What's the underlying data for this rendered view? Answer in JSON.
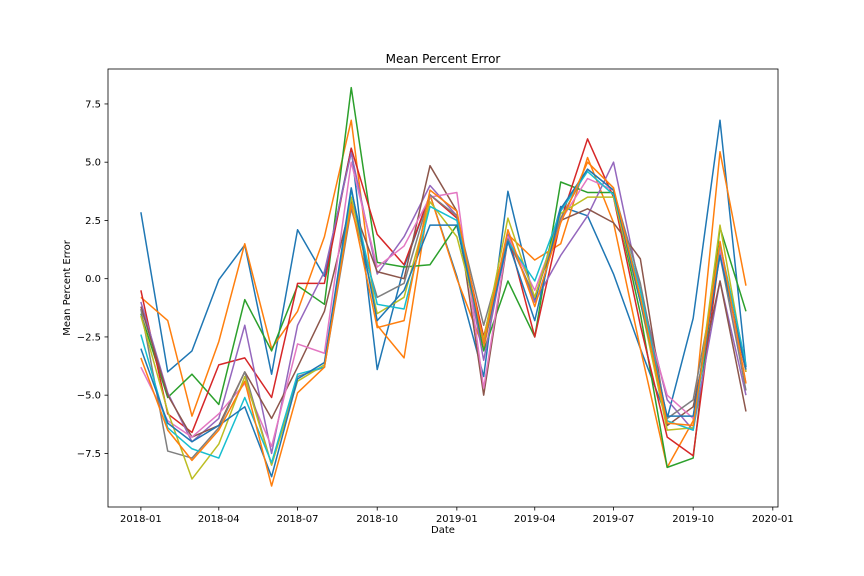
{
  "chart_data": {
    "type": "line",
    "title": "Mean Percent Error",
    "xlabel": "Date",
    "ylabel": "Mean Percent Error",
    "x": [
      "2018-01",
      "2018-02",
      "2018-03",
      "2018-04",
      "2018-05",
      "2018-06",
      "2018-07",
      "2018-08",
      "2018-09",
      "2018-10",
      "2018-11",
      "2018-12",
      "2019-01",
      "2019-02",
      "2019-03",
      "2019-04",
      "2019-05",
      "2019-06",
      "2019-07",
      "2019-08",
      "2019-09",
      "2019-10",
      "2019-11",
      "2019-12"
    ],
    "x_ticks": [
      "2018-01",
      "2018-04",
      "2018-07",
      "2018-10",
      "2019-01",
      "2019-04",
      "2019-07",
      "2019-10",
      "2020-01"
    ],
    "xlim": [
      "2017-11-24",
      "2020-01-07"
    ],
    "ylim": [
      -9.8,
      9.0
    ],
    "y_ticks": [
      -7.5,
      -5.0,
      -2.5,
      0.0,
      2.5,
      5.0,
      7.5
    ],
    "y_tick_labels": [
      "−7.5",
      "−5.0",
      "−2.5",
      "0.0",
      "2.5",
      "5.0",
      "7.5"
    ],
    "grid": false,
    "legend": "none",
    "series": [
      {
        "color": "#1f77b4",
        "values": [
          2.85,
          -4.0,
          -3.1,
          -0.05,
          1.45,
          -4.1,
          2.1,
          0.1,
          5.6,
          -3.9,
          0.5,
          3.6,
          0.1,
          -4.2,
          3.75,
          -1.0,
          3.1,
          2.7,
          0.2,
          -3.0,
          -6.0,
          -1.7,
          6.8,
          -3.8
        ]
      },
      {
        "color": "#ff7f0e",
        "values": [
          -0.8,
          -1.8,
          -5.9,
          -2.7,
          1.5,
          -3.0,
          -1.4,
          1.8,
          6.8,
          -2.0,
          -3.4,
          3.6,
          0.0,
          -3.0,
          1.9,
          0.8,
          1.5,
          5.2,
          2.4,
          -3.0,
          -8.1,
          -6.1,
          5.45,
          -0.3
        ]
      },
      {
        "color": "#2ca02c",
        "values": [
          -1.5,
          -5.1,
          -4.1,
          -5.4,
          -0.9,
          -3.1,
          -0.3,
          -1.1,
          8.2,
          0.7,
          0.5,
          0.6,
          2.3,
          -3.1,
          -0.1,
          -2.5,
          4.15,
          3.7,
          3.7,
          -1.5,
          -8.1,
          -7.7,
          2.2,
          -1.4
        ]
      },
      {
        "color": "#d62728",
        "values": [
          -0.5,
          -5.8,
          -6.6,
          -3.7,
          -3.4,
          -5.1,
          -0.2,
          -0.2,
          5.6,
          1.9,
          0.6,
          3.6,
          2.6,
          -2.5,
          1.9,
          -2.5,
          2.5,
          6.0,
          3.5,
          -2.0,
          -6.8,
          -7.6,
          1.2,
          -4.0
        ]
      },
      {
        "color": "#9467bd",
        "values": [
          -1.0,
          -4.9,
          -7.0,
          -6.0,
          -2.0,
          -7.5,
          -2.0,
          0.3,
          5.4,
          0.2,
          1.8,
          4.0,
          2.7,
          -3.5,
          1.9,
          -1.0,
          1.0,
          2.7,
          5.0,
          -0.5,
          -5.2,
          -6.5,
          -0.1,
          -5.0
        ]
      },
      {
        "color": "#8c564b",
        "values": [
          -1.2,
          -5.0,
          -6.8,
          -6.3,
          -4.0,
          -6.0,
          -3.8,
          -1.4,
          3.3,
          0.3,
          0.0,
          4.85,
          2.9,
          -5.0,
          1.7,
          -0.8,
          2.5,
          3.0,
          2.4,
          0.85,
          -6.3,
          -5.5,
          -0.1,
          -5.7
        ]
      },
      {
        "color": "#e377c2",
        "values": [
          -3.8,
          -6.1,
          -6.8,
          -5.8,
          -4.5,
          -7.2,
          -2.8,
          -3.2,
          5.0,
          0.5,
          1.4,
          3.5,
          3.7,
          -4.7,
          1.8,
          -0.5,
          2.5,
          4.3,
          3.8,
          -1.0,
          -5.0,
          -6.0,
          1.3,
          -4.5
        ]
      },
      {
        "color": "#7f7f7f",
        "values": [
          -1.3,
          -7.4,
          -7.7,
          -6.4,
          -4.0,
          -8.0,
          -4.2,
          -3.8,
          3.0,
          -0.8,
          -0.2,
          3.6,
          2.7,
          -2.0,
          1.7,
          -0.8,
          2.6,
          4.7,
          3.8,
          -0.2,
          -6.0,
          -5.2,
          1.0,
          -4.8
        ]
      },
      {
        "color": "#bcbd22",
        "values": [
          -1.6,
          -5.7,
          -8.6,
          -7.1,
          -4.2,
          -8.0,
          -4.4,
          -3.7,
          3.5,
          -1.5,
          -0.8,
          3.3,
          1.8,
          -2.6,
          2.6,
          -0.8,
          2.8,
          3.5,
          3.5,
          -1.0,
          -6.5,
          -6.4,
          2.3,
          -4.0
        ]
      },
      {
        "color": "#17becf",
        "values": [
          -2.4,
          -6.4,
          -7.3,
          -7.7,
          -5.1,
          -7.9,
          -4.1,
          -3.8,
          3.8,
          -1.1,
          -1.3,
          3.1,
          2.5,
          -2.8,
          1.6,
          -0.1,
          2.9,
          4.6,
          3.6,
          -0.5,
          -6.1,
          -6.5,
          1.5,
          -3.7
        ]
      },
      {
        "color": "#1f77b4",
        "values": [
          -3.0,
          -6.2,
          -7.0,
          -6.3,
          -5.5,
          -8.5,
          -4.3,
          -3.6,
          3.9,
          -1.8,
          -0.5,
          2.3,
          2.3,
          -2.8,
          1.6,
          -1.8,
          3.0,
          4.7,
          3.8,
          -1.0,
          -5.9,
          -5.9,
          1.0,
          -3.9
        ]
      },
      {
        "color": "#ff7f0e",
        "values": [
          -3.4,
          -6.5,
          -7.8,
          -6.5,
          -4.4,
          -8.9,
          -4.9,
          -3.8,
          3.2,
          -2.1,
          -1.8,
          3.8,
          2.9,
          -2.8,
          2.1,
          -1.2,
          2.4,
          5.0,
          3.9,
          -0.8,
          -6.2,
          -6.3,
          1.6,
          -4.5
        ]
      }
    ]
  }
}
